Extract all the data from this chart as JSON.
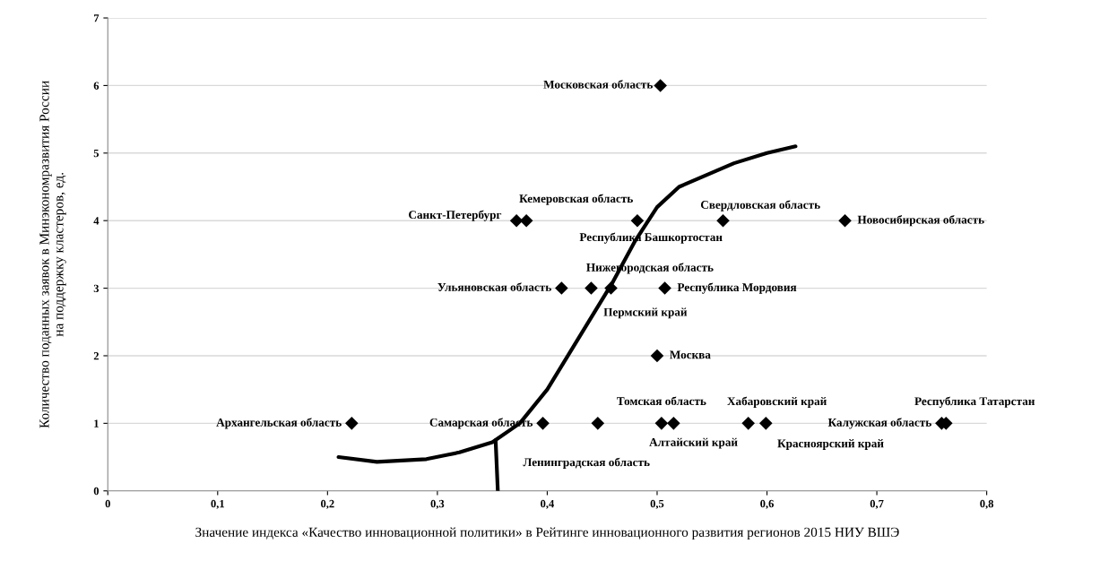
{
  "chart_data": {
    "type": "scatter",
    "xlabel": "Значение индекса «Качество инновационной политики» в Рейтинге инновационного развития регионов 2015 НИУ ВШЭ",
    "ylabel": "Количество поданных заявок в Минэкономразвития России\nна поддержку кластеров, ед.",
    "series": [
      {
        "type": "scatter",
        "color": "#000000",
        "marker": "diamond",
        "x": [
          0.503,
          0.381,
          0.372,
          0.482,
          0.56,
          0.671,
          0.413,
          0.44,
          0.458,
          0.507,
          0.5,
          0.222,
          0.396,
          0.446,
          0.504,
          0.515,
          0.583,
          0.599,
          0.759,
          0.763
        ],
        "values": [
          6,
          4,
          4,
          4,
          4,
          4,
          3,
          3,
          3,
          3,
          2,
          1,
          1,
          1,
          1,
          1,
          1,
          1,
          1,
          1
        ]
      },
      {
        "type": "line",
        "color": "#000000",
        "marker": "none",
        "x": [
          0.21,
          0.245,
          0.29,
          0.32,
          0.35,
          0.375,
          0.4,
          0.43,
          0.46,
          0.48,
          0.5,
          0.52,
          0.57,
          0.6,
          0.626
        ],
        "values": [
          0.5,
          0.43,
          0.47,
          0.57,
          0.72,
          1.0,
          1.5,
          2.3,
          3.1,
          3.7,
          4.2,
          4.5,
          4.85,
          5.0,
          5.1
        ]
      },
      {
        "type": "line",
        "color": "#000000",
        "marker": "none",
        "x": [
          0.353,
          0.355
        ],
        "values": [
          0.75,
          0
        ]
      }
    ],
    "annotations": [
      {
        "text": "Московская область",
        "x": 0.503,
        "y": 6
      },
      {
        "text": "Кемеровская область",
        "x": 0.381,
        "y": 4
      },
      {
        "text": "Санкт-Петербург",
        "x": 0.372,
        "y": 4
      },
      {
        "text": "Республика Башкортостан",
        "x": 0.482,
        "y": 4
      },
      {
        "text": "Свердловская область",
        "x": 0.56,
        "y": 4
      },
      {
        "text": "Новосибирская область",
        "x": 0.671,
        "y": 4
      },
      {
        "text": "Ульяновская область",
        "x": 0.413,
        "y": 3
      },
      {
        "text": "Нижегородская область",
        "x": 0.44,
        "y": 3
      },
      {
        "text": "Пермский край",
        "x": 0.458,
        "y": 3
      },
      {
        "text": "Республика Мордовия",
        "x": 0.507,
        "y": 3
      },
      {
        "text": "Москва",
        "x": 0.5,
        "y": 2
      },
      {
        "text": "Архангельская область",
        "x": 0.222,
        "y": 1
      },
      {
        "text": "Самарская область",
        "x": 0.396,
        "y": 1
      },
      {
        "text": "Ленинградская область",
        "x": 0.446,
        "y": 1
      },
      {
        "text": "Томская область",
        "x": 0.504,
        "y": 1
      },
      {
        "text": "Алтайский край",
        "x": 0.515,
        "y": 1
      },
      {
        "text": "Хабаровский край",
        "x": 0.583,
        "y": 1
      },
      {
        "text": "Красноярский край",
        "x": 0.599,
        "y": 1
      },
      {
        "text": "Калужская область",
        "x": 0.759,
        "y": 1
      },
      {
        "text": "Республика Татарстан",
        "x": 0.763,
        "y": 1
      }
    ],
    "xlim": [
      0,
      0.8
    ],
    "xticks": [
      0,
      {
        "value": 0.1,
        "label": "0,1"
      },
      {
        "value": 0.2,
        "label": "0,2"
      },
      {
        "value": 0.3,
        "label": "0,3"
      },
      {
        "value": 0.4,
        "label": "0,4"
      },
      {
        "value": 0.5,
        "label": "0,5"
      },
      {
        "value": 0.6,
        "label": "0,6"
      },
      {
        "value": 0.7,
        "label": "0,7"
      },
      {
        "value": 0.8,
        "label": "0,8"
      }
    ],
    "ylim": [
      0,
      7
    ],
    "yticks": [
      0,
      1,
      2,
      3,
      4,
      5,
      6,
      7
    ],
    "grid": "y"
  }
}
